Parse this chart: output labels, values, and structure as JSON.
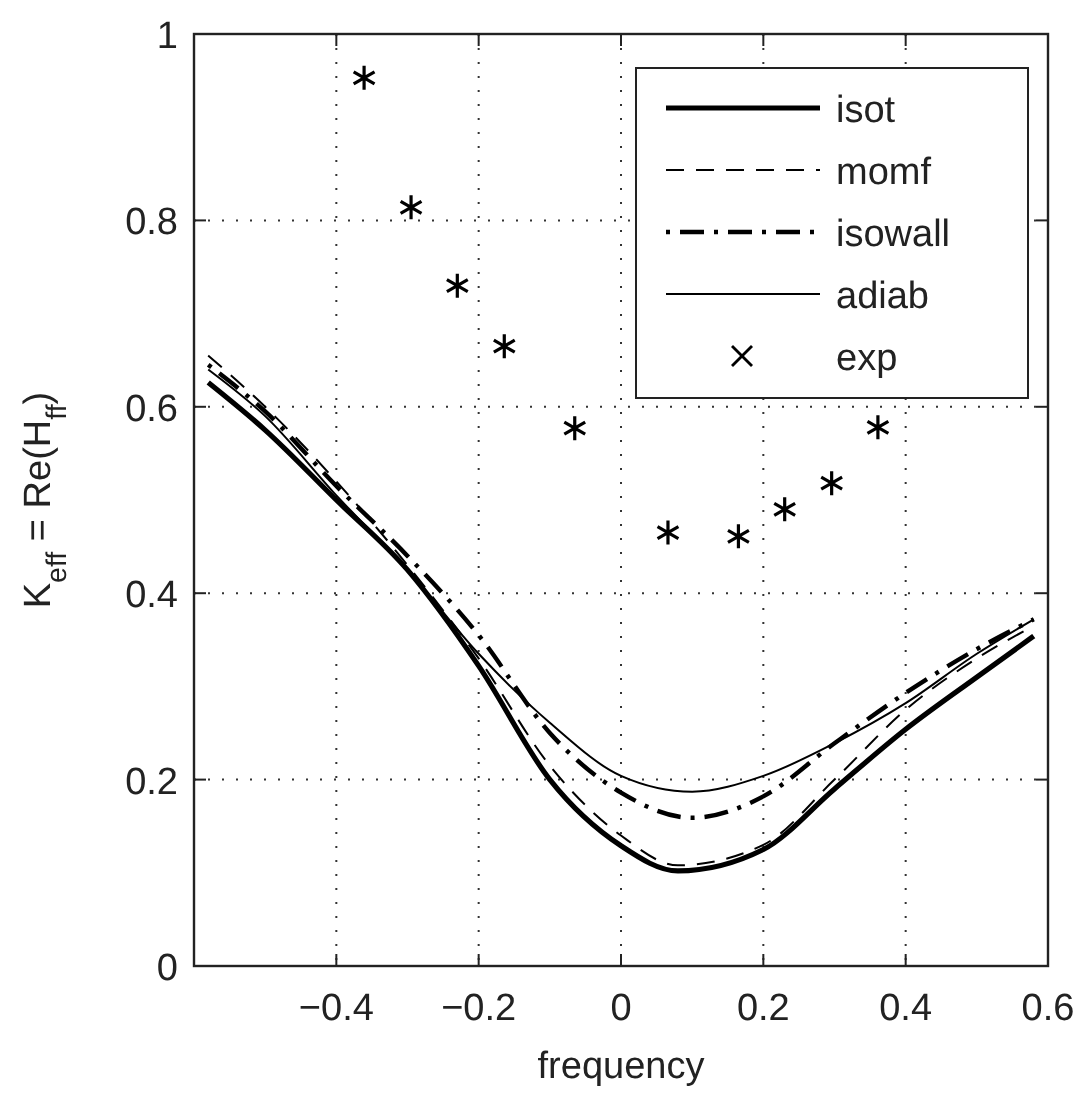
{
  "chart_data": {
    "type": "line",
    "xlabel": "frequency",
    "ylabel": "K$_{eff}$ = Re(H$_{ff}$)",
    "xlim": [
      -0.6,
      0.6
    ],
    "ylim": [
      0,
      1
    ],
    "xticks": [
      {
        "value": -0.6,
        "label": null
      },
      -0.4,
      -0.2,
      0,
      0.2,
      0.4,
      0.6
    ],
    "yticks": [
      0,
      0.2,
      0.4,
      0.6,
      0.8,
      1
    ],
    "grid": true,
    "legend": "top right",
    "series": [
      {
        "name": "isot",
        "color": "#000000",
        "line_style": "solid",
        "x": [
          -0.58,
          -0.5,
          -0.4,
          -0.3,
          -0.2,
          -0.1,
          0,
          0.08,
          0.2,
          0.3,
          0.4,
          0.5,
          0.58
        ],
        "values": [
          0.626,
          0.575,
          0.5,
          0.425,
          0.322,
          0.2,
          0.129,
          0.102,
          0.125,
          0.19,
          0.254,
          0.31,
          0.354
        ]
      },
      {
        "name": "momf",
        "color": "#000000",
        "line_style": "dashed",
        "x": [
          -0.58,
          -0.5,
          -0.4,
          -0.3,
          -0.2,
          -0.1,
          0,
          0.08,
          0.2,
          0.3,
          0.4,
          0.5,
          0.58
        ],
        "values": [
          0.655,
          0.6,
          0.52,
          0.43,
          0.33,
          0.215,
          0.14,
          0.108,
          0.13,
          0.2,
          0.275,
          0.33,
          0.365
        ]
      },
      {
        "name": "isowall",
        "color": "#000000",
        "line_style": "dashdot",
        "x": [
          -0.58,
          -0.5,
          -0.4,
          -0.3,
          -0.2,
          -0.1,
          0,
          0.1,
          0.2,
          0.3,
          0.4,
          0.5,
          0.58
        ],
        "values": [
          0.645,
          0.595,
          0.515,
          0.44,
          0.355,
          0.25,
          0.186,
          0.159,
          0.182,
          0.239,
          0.293,
          0.34,
          0.372
        ]
      },
      {
        "name": "adiab",
        "color": "#000000",
        "line_style": "solid",
        "x": [
          -0.58,
          -0.5,
          -0.4,
          -0.3,
          -0.2,
          -0.1,
          0,
          0.1,
          0.2,
          0.3,
          0.4,
          0.5,
          0.58
        ],
        "values": [
          0.64,
          0.59,
          0.505,
          0.425,
          0.335,
          0.261,
          0.204,
          0.187,
          0.204,
          0.239,
          0.282,
          0.335,
          0.372
        ]
      },
      {
        "name": "exp",
        "type": "scatter",
        "color": "#000000",
        "marker": "cross",
        "x": [
          -0.361,
          -0.295,
          -0.23,
          -0.164,
          -0.065,
          0.066,
          0.165,
          0.23,
          0.296,
          0.361
        ],
        "values": [
          0.953,
          0.814,
          0.73,
          0.665,
          0.577,
          0.465,
          0.461,
          0.49,
          0.518,
          0.578
        ]
      }
    ]
  }
}
